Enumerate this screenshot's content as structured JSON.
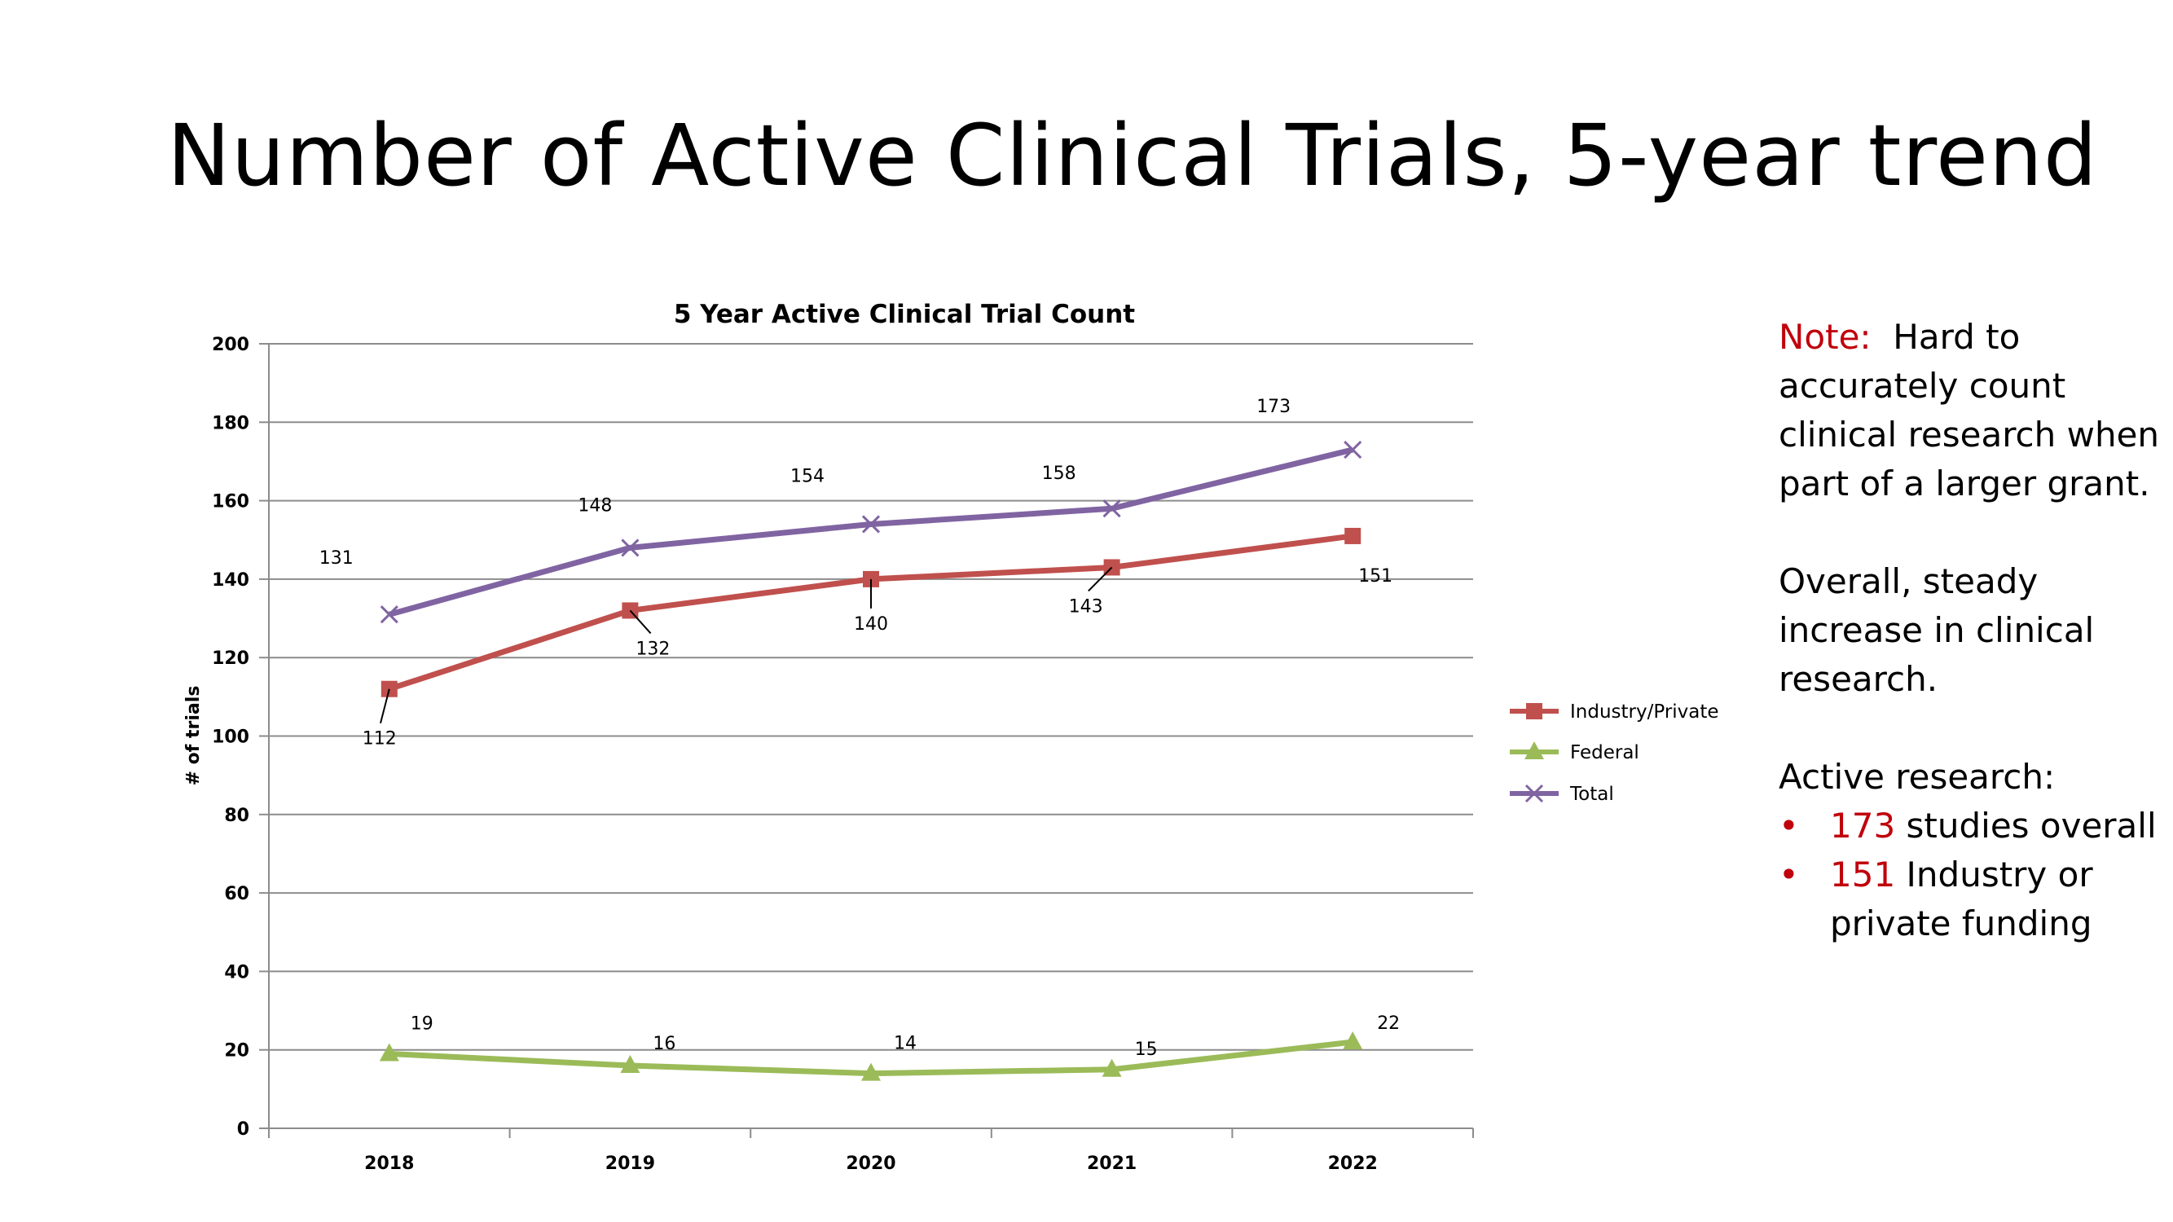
{
  "slide": {
    "title": "Number of Active Clinical Trials, 5-year trend"
  },
  "chart_data": {
    "type": "line",
    "title": "5 Year Active Clinical Trial Count",
    "xlabel": "",
    "ylabel": "# of trials",
    "categories": [
      "2018",
      "2019",
      "2020",
      "2021",
      "2022"
    ],
    "ylim": [
      0,
      200
    ],
    "yticks": [
      0,
      20,
      40,
      60,
      80,
      100,
      120,
      140,
      160,
      180,
      200
    ],
    "grid": true,
    "legend_position": "right",
    "series": [
      {
        "name": "Industry/Private",
        "values": [
          112,
          132,
          140,
          143,
          151
        ],
        "color": "#c0504d",
        "marker": "square"
      },
      {
        "name": "Federal",
        "values": [
          19,
          16,
          14,
          15,
          22
        ],
        "color": "#9bbb59",
        "marker": "triangle"
      },
      {
        "name": "Total",
        "values": [
          131,
          148,
          154,
          158,
          173
        ],
        "color": "#8064a2",
        "marker": "x"
      }
    ]
  },
  "notes": {
    "note_label": "Note:",
    "note_text": "Hard to accurately count clinical research when part of a larger grant.",
    "summary": "Overall, steady increase in clinical research.",
    "active_heading": "Active research:",
    "bullet_glyph": "•",
    "bullets": [
      {
        "value": "173",
        "text": "studies overall"
      },
      {
        "value": "151",
        "text": "Industry or private funding"
      }
    ]
  }
}
